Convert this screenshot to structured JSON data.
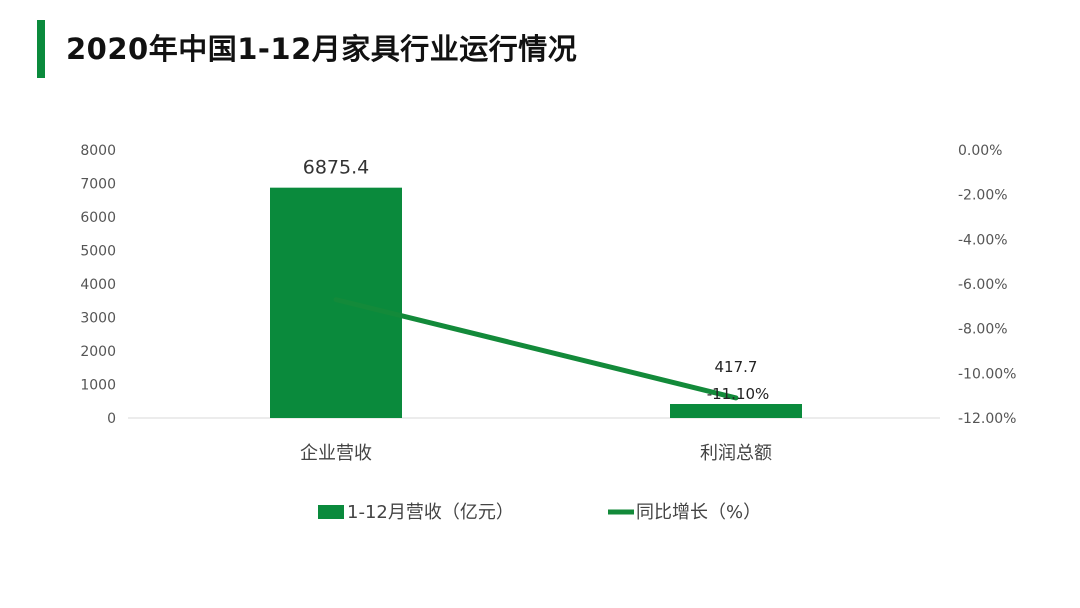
{
  "title": "2020年中国1-12月家具行业运行情况",
  "colors": {
    "accent": "#0a8a3c",
    "bar": "#0a8a3c",
    "line": "#138a3a"
  },
  "chart_data": {
    "type": "bar",
    "categories": [
      "企业营收",
      "利润总额"
    ],
    "series": [
      {
        "name": "1-12月营收（亿元）",
        "type": "bar",
        "axis": "left",
        "values": [
          6875.4,
          417.7
        ],
        "labels": [
          "6875.4",
          "417.7"
        ]
      },
      {
        "name": "同比增长（%）",
        "type": "line",
        "axis": "right",
        "values": [
          -6.7,
          -11.1
        ],
        "labels": [
          "",
          "-11.10%"
        ]
      }
    ],
    "y_left": {
      "range": [
        0,
        8000
      ],
      "ticks": [
        "0",
        "1000",
        "2000",
        "3000",
        "4000",
        "5000",
        "6000",
        "7000",
        "8000"
      ]
    },
    "y_right": {
      "range": [
        -12,
        0
      ],
      "ticks": [
        "-12.00%",
        "-10.00%",
        "-8.00%",
        "-6.00%",
        "-4.00%",
        "-2.00%",
        "0.00%"
      ]
    },
    "legend": "bottom",
    "grid": false
  }
}
